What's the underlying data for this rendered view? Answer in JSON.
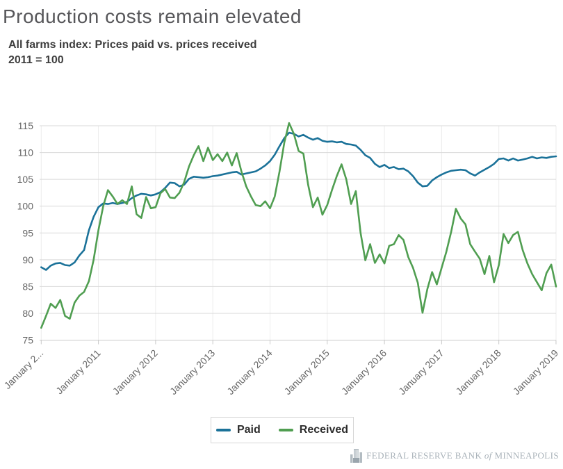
{
  "header": {
    "title": "Production costs remain elevated",
    "subtitle_line1": "All farms index: Prices paid vs. prices received",
    "subtitle_line2": "2011 = 100"
  },
  "legend": {
    "items": [
      {
        "label": "Paid",
        "color": "#1b7299"
      },
      {
        "label": "Received",
        "color": "#509e51"
      }
    ]
  },
  "footer": {
    "bank_prefix": "FEDERAL RESERVE BANK",
    "of": "of",
    "bank_city": "MINNEAPOLIS"
  },
  "colors": {
    "paid_line": "#1b7299",
    "received_line": "#509e51",
    "gridline": "#d9d9d9",
    "vertical_gridline": "#ececec",
    "axis": "#c9c9c9",
    "axis_label": "#666666"
  },
  "chart_data": {
    "type": "line",
    "title": "Production costs remain elevated",
    "subtitle": "All farms index: Prices paid vs. prices received, 2011 = 100",
    "x_unit": "monthly, January 2010 through January 2019",
    "ylim": [
      75,
      115
    ],
    "y_ticks": [
      75,
      80,
      85,
      90,
      95,
      100,
      105,
      110,
      115
    ],
    "x_tick_months": [
      0,
      12,
      24,
      36,
      48,
      60,
      72,
      84,
      96,
      108
    ],
    "x_tick_labels": [
      "January 2...",
      "January 2011",
      "January 2012",
      "January 2013",
      "January 2014",
      "January 2015",
      "January 2016",
      "January 2017",
      "January 2018",
      "January 2019"
    ],
    "grid": "horizontal and vertical year lines",
    "legend_position": "bottom center",
    "series": [
      {
        "name": "Paid",
        "color": "#1b7299",
        "values": [
          88.6,
          88.1,
          88.9,
          89.3,
          89.4,
          89.0,
          88.9,
          89.5,
          90.8,
          91.8,
          95.5,
          98.0,
          99.8,
          100.5,
          100.4,
          100.6,
          100.4,
          100.6,
          100.8,
          101.5,
          102.0,
          102.3,
          102.2,
          102.0,
          102.2,
          102.6,
          103.4,
          104.4,
          104.3,
          103.7,
          104.0,
          105.1,
          105.5,
          105.4,
          105.3,
          105.4,
          105.6,
          105.7,
          105.9,
          106.1,
          106.3,
          106.4,
          105.9,
          106.1,
          106.3,
          106.5,
          107.0,
          107.6,
          108.4,
          109.6,
          111.2,
          112.7,
          113.7,
          113.5,
          113.0,
          113.3,
          112.8,
          112.4,
          112.7,
          112.2,
          112.0,
          112.1,
          111.9,
          112.0,
          111.6,
          111.5,
          111.3,
          110.5,
          109.5,
          109.0,
          107.9,
          107.3,
          107.7,
          107.1,
          107.3,
          106.9,
          107.0,
          106.5,
          105.6,
          104.4,
          103.7,
          103.8,
          104.8,
          105.4,
          105.9,
          106.3,
          106.6,
          106.7,
          106.8,
          106.7,
          106.1,
          105.7,
          106.3,
          106.8,
          107.3,
          107.9,
          108.8,
          108.9,
          108.5,
          108.9,
          108.5,
          108.7,
          108.9,
          109.2,
          108.9,
          109.1,
          109.0,
          109.2,
          109.3
        ]
      },
      {
        "name": "Received",
        "color": "#509e51",
        "values": [
          77.3,
          79.5,
          81.8,
          81.0,
          82.5,
          79.5,
          79.0,
          82.0,
          83.3,
          84.0,
          86.0,
          90.0,
          95.5,
          100.0,
          103.0,
          101.8,
          100.4,
          101.1,
          100.4,
          103.7,
          98.5,
          97.8,
          101.7,
          99.6,
          99.8,
          102.4,
          103.2,
          101.6,
          101.5,
          102.5,
          104.5,
          107.4,
          109.5,
          111.2,
          108.4,
          110.9,
          108.6,
          109.7,
          108.4,
          110.0,
          107.6,
          109.9,
          106.5,
          103.7,
          101.8,
          100.2,
          100.0,
          100.9,
          99.6,
          101.8,
          106.5,
          111.9,
          115.5,
          113.5,
          110.3,
          109.8,
          104.0,
          99.8,
          101.6,
          98.4,
          100.2,
          103.0,
          105.6,
          107.8,
          105.0,
          100.4,
          102.8,
          95.0,
          89.9,
          92.9,
          89.4,
          91.0,
          89.3,
          92.6,
          92.9,
          94.6,
          93.7,
          90.5,
          88.5,
          85.7,
          80.1,
          84.5,
          87.7,
          85.4,
          88.5,
          91.5,
          95.2,
          99.5,
          97.7,
          96.6,
          92.9,
          91.5,
          90.2,
          87.3,
          90.7,
          85.8,
          89.0,
          94.8,
          93.1,
          94.6,
          95.2,
          91.8,
          89.3,
          87.3,
          85.8,
          84.3,
          87.5,
          89.1,
          85.0
        ]
      }
    ]
  }
}
